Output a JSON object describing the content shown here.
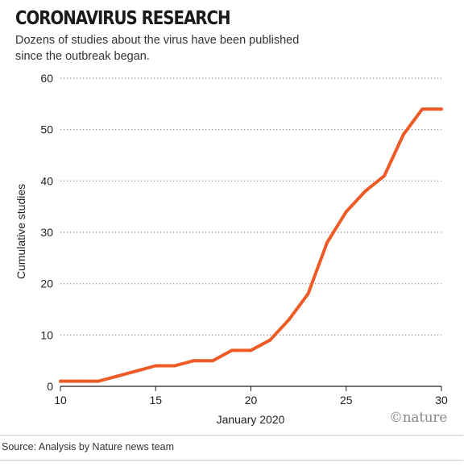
{
  "header": {
    "title": "CORONAVIRUS RESEARCH",
    "subtitle": "Dozens of studies about the virus have been published since the outbreak began."
  },
  "footer": {
    "source": "Source: Analysis by Nature news team",
    "brand": "©nature"
  },
  "colors": {
    "line": "#ee5b27",
    "grid": "#888888",
    "axis": "#222222"
  },
  "chart_data": {
    "type": "line",
    "title": "CORONAVIRUS RESEARCH",
    "xlabel": "January 2020",
    "ylabel": "Cumulative studies",
    "xlim": [
      10,
      30
    ],
    "ylim": [
      0,
      60
    ],
    "x_ticks": [
      10,
      15,
      20,
      25,
      30
    ],
    "y_ticks": [
      0,
      10,
      20,
      30,
      40,
      50,
      60
    ],
    "grid": true,
    "series": [
      {
        "x": [
          10,
          11,
          12,
          13,
          14,
          15,
          16,
          17,
          18,
          19,
          20,
          21,
          22,
          23,
          24,
          25,
          26,
          27,
          28,
          29,
          30
        ],
        "values": [
          1,
          1,
          1,
          2,
          3,
          4,
          4,
          5,
          5,
          7,
          7,
          9,
          13,
          18,
          28,
          34,
          38,
          41,
          49,
          54,
          54
        ]
      }
    ]
  }
}
